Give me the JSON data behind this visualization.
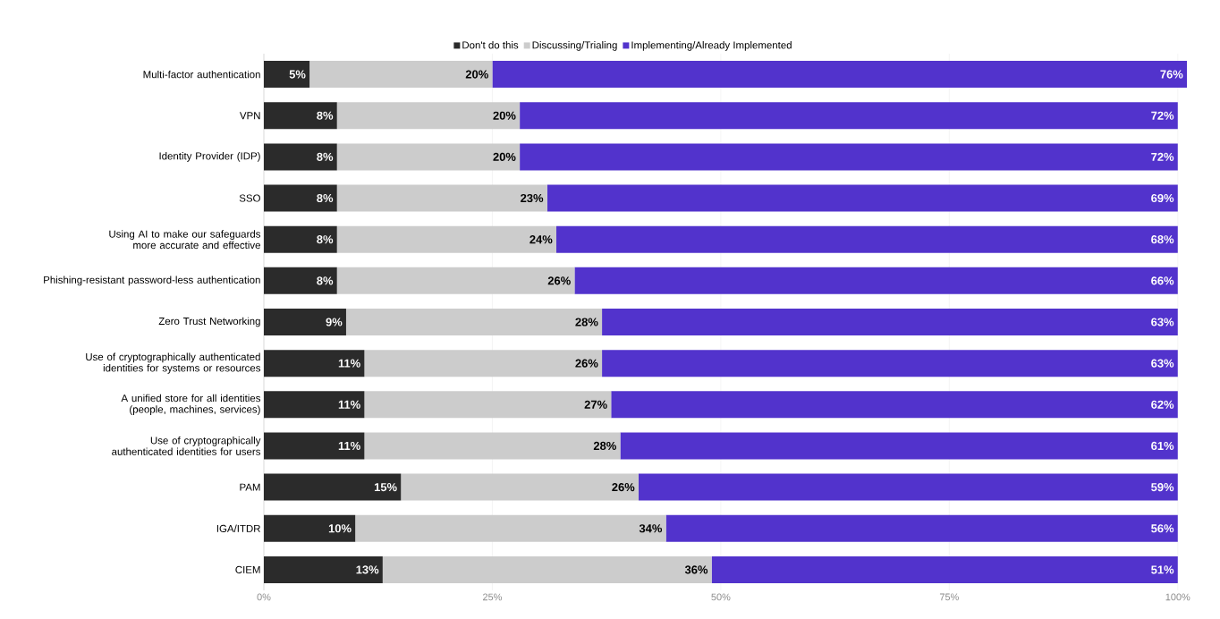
{
  "chart_data": {
    "type": "bar",
    "orientation": "horizontal",
    "stacked": true,
    "legend": "top",
    "grid": "x",
    "categories": [
      "Multi-factor authentication",
      "VPN",
      "Identity Provider (IDP)",
      "SSO",
      "Using AI to make our safeguards more accurate and effective",
      "Phishing-resistant password-less authentication",
      "Zero Trust Networking",
      "Use of cryptographically authenticated identities for systems or resources",
      "A unified store for all identities (people, machines, services)",
      "Use of cryptographically authenticated identities for users",
      "PAM",
      "IGA/ITDR",
      "CIEM"
    ],
    "series": [
      {
        "name": "Don't do this",
        "color": "#2b2b2b",
        "values": [
          5,
          8,
          8,
          8,
          8,
          8,
          9,
          11,
          11,
          11,
          15,
          10,
          13
        ],
        "value_labels": [
          "5%",
          "8%",
          "8%",
          "8%",
          "8%",
          "8%",
          "9%",
          "11%",
          "11%",
          "11%",
          "15%",
          "10%",
          "13%"
        ]
      },
      {
        "name": "Discussing/Trialing",
        "color": "#cccccc",
        "values": [
          20,
          20,
          20,
          23,
          24,
          26,
          28,
          26,
          27,
          28,
          26,
          34,
          36
        ],
        "value_labels": [
          "20%",
          "20%",
          "20%",
          "23%",
          "24%",
          "26%",
          "28%",
          "26%",
          "27%",
          "28%",
          "26%",
          "34%",
          "36%"
        ]
      },
      {
        "name": "Implementing/Already Implemented",
        "color": "#5233cc",
        "values": [
          76,
          72,
          72,
          69,
          68,
          66,
          63,
          63,
          62,
          61,
          59,
          56,
          51
        ],
        "value_labels": [
          "76%",
          "72%",
          "72%",
          "69%",
          "68%",
          "66%",
          "63%",
          "63%",
          "62%",
          "61%",
          "59%",
          "56%",
          "51%"
        ]
      }
    ],
    "xlim": [
      0,
      101
    ],
    "xticks": [
      {
        "value": 0,
        "label": "0%"
      },
      {
        "value": 25,
        "label": "25%"
      },
      {
        "value": 50,
        "label": "50%"
      },
      {
        "value": 75,
        "label": "75%"
      },
      {
        "value": 100,
        "label": "100%"
      }
    ]
  }
}
